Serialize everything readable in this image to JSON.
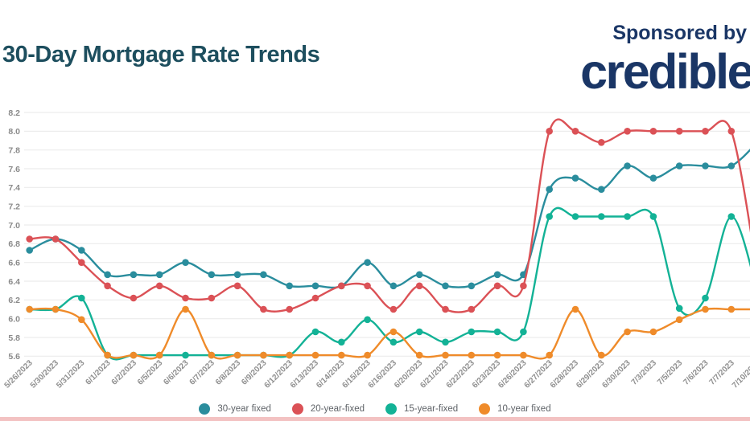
{
  "header": {
    "title": "30-Day Mortgage Rate Trends",
    "sponsored_by": "Sponsored by",
    "sponsor_name": "credible"
  },
  "colors": {
    "title_text": "#1d4e5e",
    "sponsor_navy": "#1a3666",
    "gridline": "#ececec",
    "axis_label": "#8a8a8a",
    "series_30_year": "#2a8d9d",
    "series_20_year": "#db5156",
    "series_15_year": "#13b296",
    "series_10_year": "#ef8b2a",
    "bottom_strip": "#f3c2c2"
  },
  "chart_data": {
    "type": "line",
    "title": "30-Day Mortgage Rate Trends",
    "xlabel": "",
    "ylabel": "",
    "ylim": [
      5.6,
      8.2
    ],
    "ytick_step": 0.2,
    "grid": true,
    "legend_position": "bottom",
    "marker": "circle",
    "x": [
      "5/26/2023",
      "5/30/2023",
      "5/31/2023",
      "6/1/2023",
      "6/2/2023",
      "6/5/2023",
      "6/6/2023",
      "6/7/2023",
      "6/8/2023",
      "6/9/2023",
      "6/12/2023",
      "6/13/2023",
      "6/14/2023",
      "6/15/2023",
      "6/16/2023",
      "6/20/2023",
      "6/21/2023",
      "6/22/2023",
      "6/23/2023",
      "6/26/2023",
      "6/27/2023",
      "6/28/2023",
      "6/29/2023",
      "6/30/2023",
      "7/3/2023",
      "7/5/2023",
      "7/6/2023",
      "7/7/2023",
      "7/10/2023"
    ],
    "series": [
      {
        "name": "30-year fixed",
        "color": "#2a8d9d",
        "values": [
          6.73,
          6.85,
          6.73,
          6.47,
          6.47,
          6.47,
          6.6,
          6.47,
          6.47,
          6.47,
          6.35,
          6.35,
          6.35,
          6.6,
          6.35,
          6.47,
          6.35,
          6.35,
          6.47,
          6.47,
          7.38,
          7.5,
          7.38,
          7.63,
          7.5,
          7.63,
          7.63,
          7.63,
          7.88
        ]
      },
      {
        "name": "20-year-fixed",
        "color": "#db5156",
        "values": [
          6.85,
          6.85,
          6.6,
          6.35,
          6.22,
          6.35,
          6.22,
          6.22,
          6.35,
          6.1,
          6.1,
          6.22,
          6.35,
          6.35,
          6.1,
          6.35,
          6.1,
          6.1,
          6.35,
          6.35,
          8.0,
          8.0,
          7.88,
          8.0,
          8.0,
          8.0,
          8.0,
          8.0,
          6.5
        ]
      },
      {
        "name": "15-year-fixed",
        "color": "#13b296",
        "values": [
          6.1,
          6.1,
          6.22,
          5.61,
          5.61,
          5.61,
          5.61,
          5.61,
          5.61,
          5.61,
          5.61,
          5.86,
          5.75,
          5.99,
          5.75,
          5.86,
          5.75,
          5.86,
          5.86,
          5.86,
          7.09,
          7.09,
          7.09,
          7.09,
          7.09,
          6.11,
          6.22,
          7.09,
          6.3
        ]
      },
      {
        "name": "10-year fixed",
        "color": "#ef8b2a",
        "values": [
          6.1,
          6.1,
          5.99,
          5.61,
          5.61,
          5.61,
          6.1,
          5.61,
          5.61,
          5.61,
          5.61,
          5.61,
          5.61,
          5.61,
          5.86,
          5.61,
          5.61,
          5.61,
          5.61,
          5.61,
          5.61,
          6.1,
          5.61,
          5.86,
          5.86,
          5.99,
          6.1,
          6.1,
          6.1
        ]
      }
    ]
  }
}
